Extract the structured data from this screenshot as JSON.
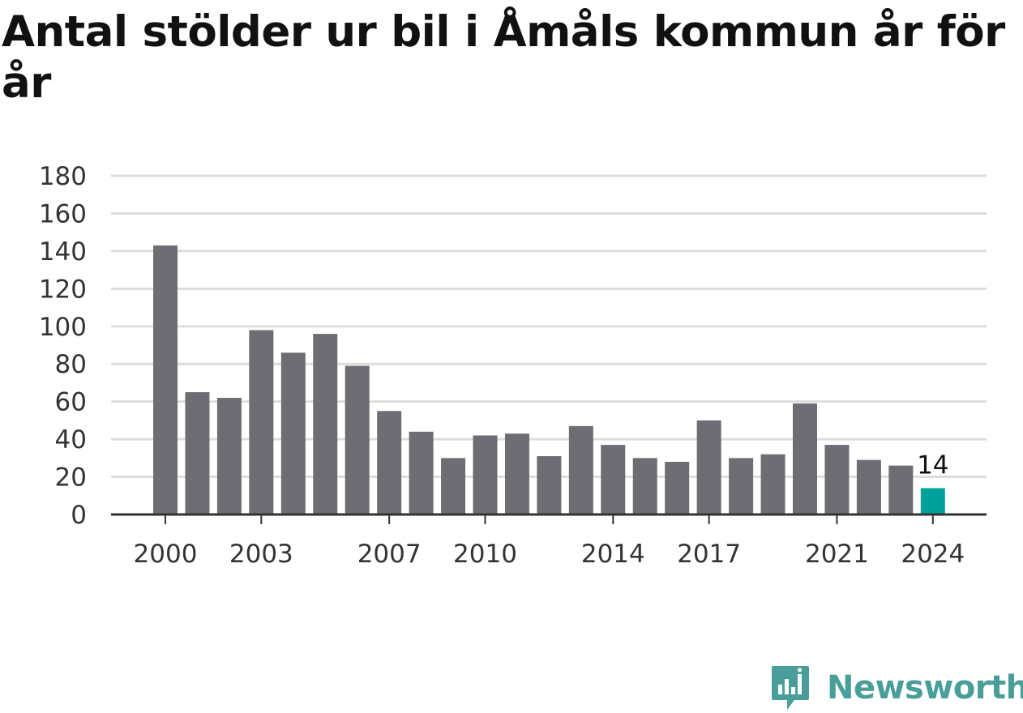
{
  "chart_data": {
    "type": "bar",
    "title": "Antal stölder ur bil i Åmåls kommun år för år",
    "xlabel": "",
    "ylabel": "",
    "categories": [
      "2000",
      "2001",
      "2002",
      "2003",
      "2004",
      "2005",
      "2006",
      "2007",
      "2008",
      "2009",
      "2010",
      "2011",
      "2012",
      "2013",
      "2014",
      "2015",
      "2016",
      "2017",
      "2018",
      "2019",
      "2020",
      "2021",
      "2022",
      "2023",
      "2024"
    ],
    "values": [
      143,
      65,
      62,
      98,
      86,
      96,
      79,
      55,
      44,
      30,
      42,
      43,
      31,
      47,
      37,
      30,
      28,
      50,
      30,
      32,
      59,
      37,
      29,
      26,
      14
    ],
    "x_tick_labels": [
      "2000",
      "2003",
      "2007",
      "2010",
      "2014",
      "2017",
      "2021",
      "2024"
    ],
    "y_ticks": [
      0,
      20,
      40,
      60,
      80,
      100,
      120,
      140,
      160,
      180
    ],
    "ylim": [
      0,
      180
    ],
    "grid": true,
    "highlight": {
      "category": "2024",
      "label": "14"
    },
    "colors": {
      "bar": "#6e6d73",
      "highlight": "#00a19a",
      "grid": "#dddddd",
      "axis": "#333333"
    }
  },
  "branding": {
    "logo_text": "Newsworthy",
    "logo_color": "#4a9e9a"
  }
}
